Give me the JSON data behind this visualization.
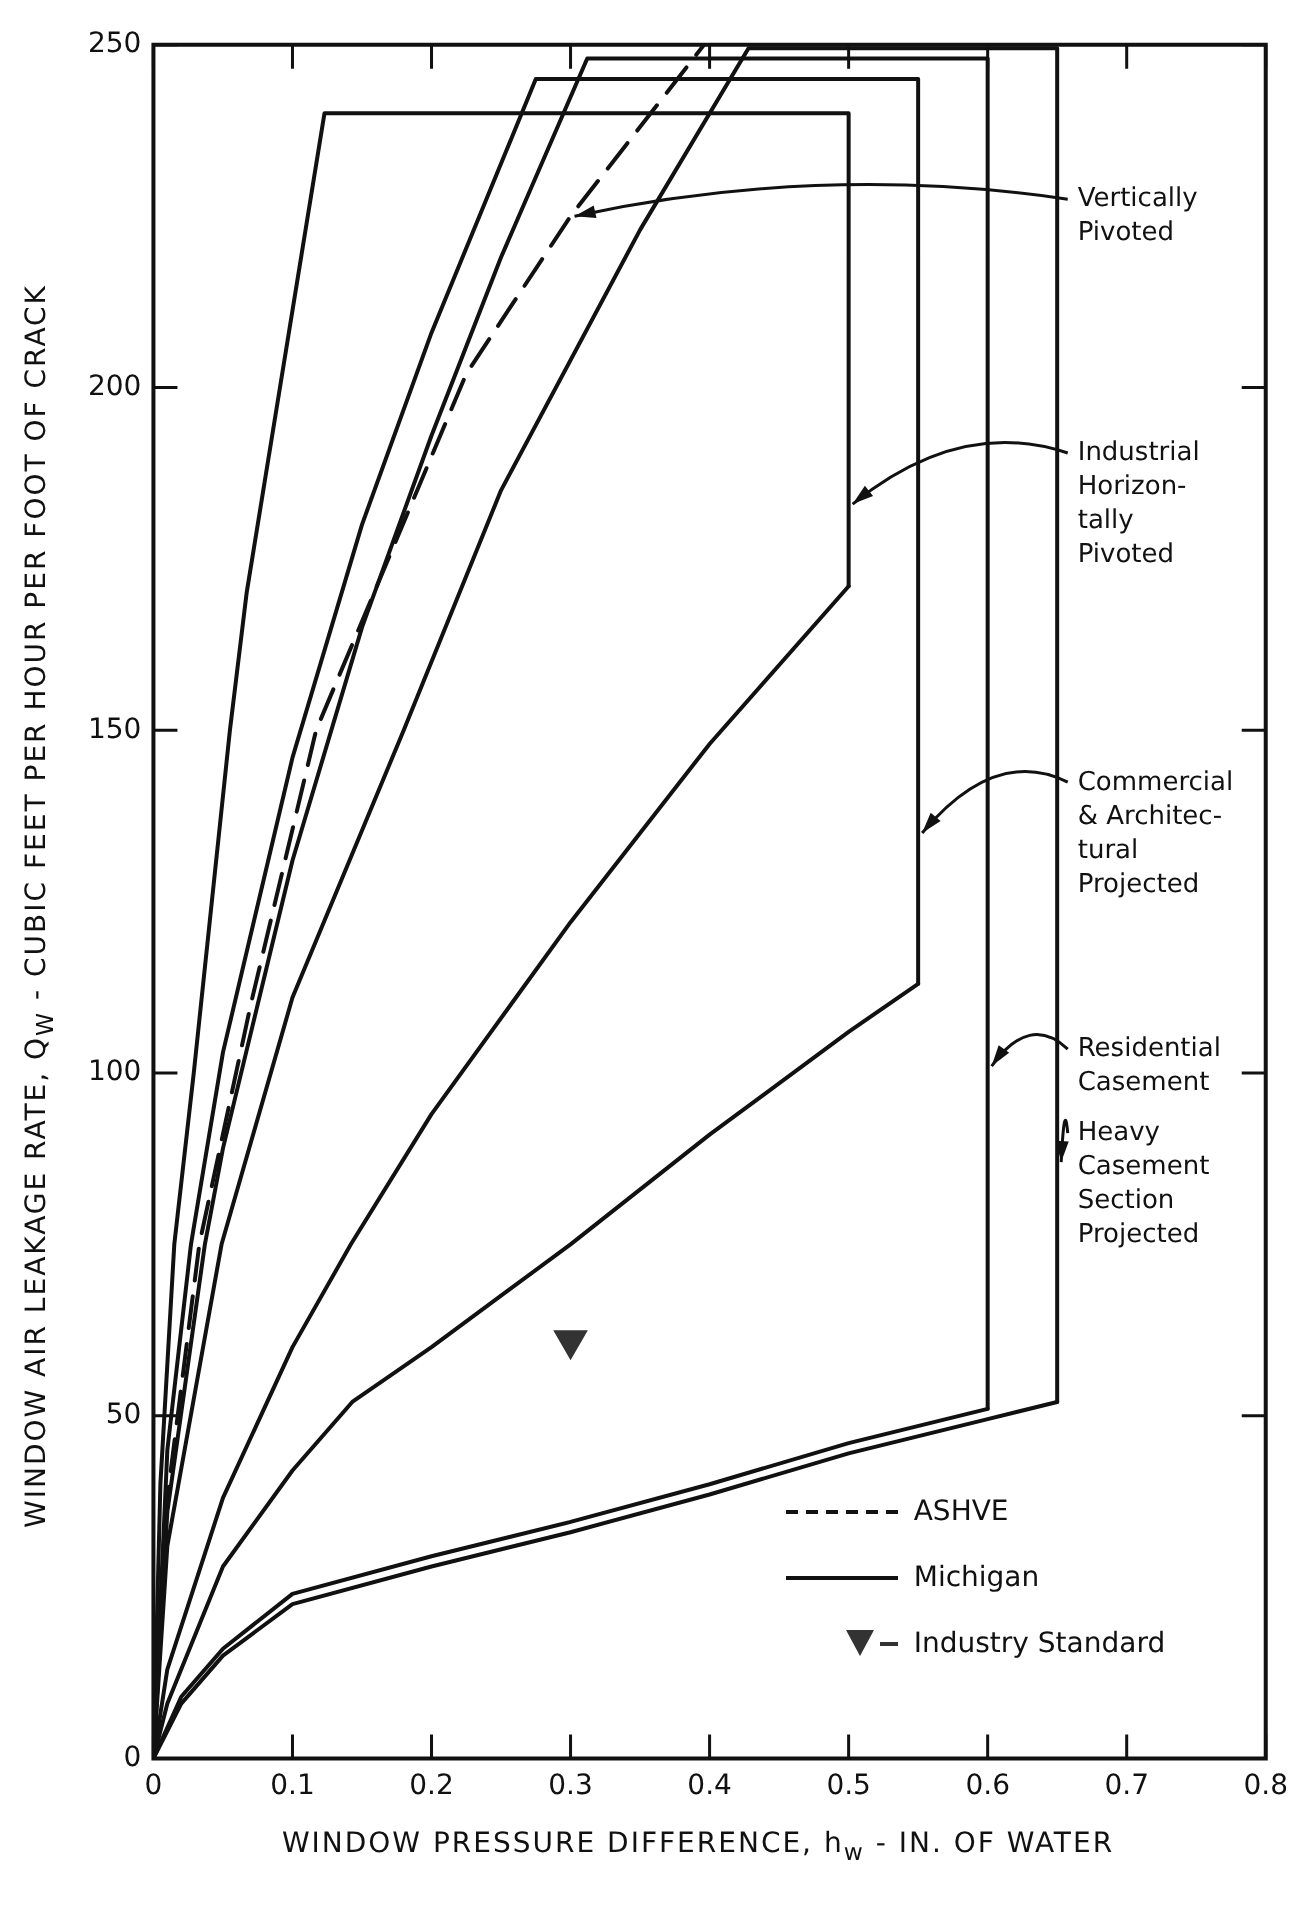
{
  "chart_data": {
    "type": "line",
    "xlabel": "WINDOW PRESSURE DIFFERENCE, h$_{w}$ - IN. OF WATER",
    "ylabel": "WINDOW AIR LEAKAGE RATE, Q$_{W}$ - CUBIC FEET PER HOUR PER FOOT OF CRACK",
    "xlim": [
      0,
      0.8
    ],
    "xticks": [
      0,
      0.1,
      0.2,
      0.3,
      0.4,
      0.5,
      0.6,
      0.7,
      0.8
    ],
    "ylim": [
      0,
      250
    ],
    "yticks": [
      0,
      50,
      100,
      150,
      200,
      250
    ],
    "grid": false,
    "legend": "bottom right",
    "marker": "none",
    "series": [
      {
        "name": "ASHVE",
        "line_style": "dashed",
        "color": "#111111",
        "x": [
          0,
          0.01,
          0.033,
          0.07,
          0.117,
          0.225,
          0.3,
          0.396
        ],
        "values": [
          0,
          38,
          75,
          110,
          150,
          202,
          225,
          250
        ]
      },
      {
        "name": "Michigan",
        "line_style": "solid",
        "color": "#111111",
        "x": [
          0,
          0.005,
          0.015,
          0.029,
          0.055,
          0.067,
          0.091,
          0.123,
          0.5,
          0.5
        ],
        "values": [
          0,
          40,
          75,
          100,
          150,
          170,
          200,
          240,
          240,
          171
        ]
      },
      {
        "line_style": "solid",
        "color": "#111111",
        "x": [
          0,
          0.01,
          0.05,
          0.1,
          0.142,
          0.2,
          0.3,
          0.4,
          0.5
        ],
        "values": [
          0,
          13,
          38,
          60,
          75,
          94,
          122,
          148,
          171
        ]
      },
      {
        "line_style": "solid",
        "color": "#111111",
        "x": [
          0,
          0.01,
          0.027,
          0.05,
          0.1,
          0.15,
          0.2,
          0.275,
          0.55,
          0.55
        ],
        "values": [
          0,
          45,
          75,
          103,
          146,
          180,
          208,
          245,
          245,
          113
        ]
      },
      {
        "line_style": "solid",
        "color": "#111111",
        "x": [
          0,
          0.01,
          0.05,
          0.1,
          0.143,
          0.2,
          0.3,
          0.4,
          0.5,
          0.55
        ],
        "values": [
          0,
          8,
          28,
          42,
          52,
          60,
          75,
          91,
          106,
          113
        ]
      },
      {
        "line_style": "solid",
        "color": "#111111",
        "x": [
          0,
          0.01,
          0.037,
          0.05,
          0.1,
          0.15,
          0.2,
          0.25,
          0.312,
          0.6,
          0.6
        ],
        "values": [
          0,
          36,
          75,
          89,
          131,
          165,
          193,
          219,
          248,
          248,
          51
        ]
      },
      {
        "line_style": "solid",
        "color": "#111111",
        "x": [
          0,
          0.02,
          0.05,
          0.1,
          0.2,
          0.3,
          0.4,
          0.5,
          0.6
        ],
        "values": [
          0,
          9,
          16,
          24,
          29.5,
          34.5,
          40,
          46,
          51
        ]
      },
      {
        "line_style": "solid",
        "color": "#111111",
        "x": [
          0,
          0.01,
          0.049,
          0.1,
          0.18,
          0.25,
          0.35,
          0.428,
          0.65,
          0.65
        ],
        "values": [
          0,
          31,
          75,
          111,
          150,
          185,
          223,
          249.5,
          249.5,
          52
        ]
      },
      {
        "line_style": "solid",
        "color": "#111111",
        "x": [
          0,
          0.02,
          0.05,
          0.1,
          0.2,
          0.3,
          0.4,
          0.5,
          0.6,
          0.65
        ],
        "values": [
          0,
          8,
          15,
          22.5,
          28,
          33,
          38.5,
          44.5,
          49.5,
          52
        ]
      },
      {
        "name": "Industry Standard",
        "type": "scatter",
        "marker": "triangle",
        "color": "#333333",
        "x": [
          0.3
        ],
        "values": [
          61
        ]
      }
    ],
    "annotations": [
      {
        "text": "Vertically\nPivoted",
        "x": 0.3,
        "y": 225
      },
      {
        "text": "Industrial\nHorizon-\ntally\nPivoted",
        "x": 0.5,
        "y": 183
      },
      {
        "text": "Commercial\n& Architec-\ntural\nProjected",
        "x": 0.55,
        "y": 135
      },
      {
        "text": "Residential\nCasement",
        "x": 0.6,
        "y": 101
      },
      {
        "text": "Heavy\nCasement\nSection\nProjected",
        "x": 0.65,
        "y": 87
      }
    ]
  }
}
